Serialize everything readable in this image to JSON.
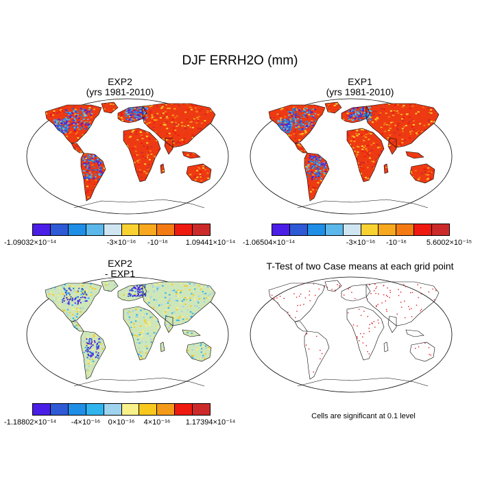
{
  "title": "DJF ERRH2O (mm)",
  "panels": {
    "p1": {
      "line1": "EXP2",
      "line2": "(yrs 1981-2010)"
    },
    "p2": {
      "line1": "EXP1",
      "line2": "(yrs 1981-2010)"
    },
    "p3": {
      "line1": "EXP2",
      "line2": "- EXP1"
    },
    "p4": {
      "line1": "T-Test of two Case means at each grid point",
      "line2": ""
    }
  },
  "colorbars": {
    "cb1": {
      "colors": [
        "#4a1ee6",
        "#2f5ad6",
        "#1f8ee6",
        "#5cb8ea",
        "#cfe6f2",
        "#f9d232",
        "#f7a81e",
        "#f47a14",
        "#ee1a10",
        "#cc2a2a"
      ],
      "labels": [
        "-1.09032×10⁻¹⁴",
        "-3×10⁻¹⁶",
        "-10⁻¹⁶",
        "1.09441×10⁻¹⁴"
      ]
    },
    "cb2": {
      "colors": [
        "#4a1ee6",
        "#2f5ad6",
        "#1f8ee6",
        "#5cb8ea",
        "#cfe6f2",
        "#f9d232",
        "#f7a81e",
        "#f47a14",
        "#ee1a10",
        "#cc2a2a"
      ],
      "labels": [
        "-1.06504×10⁻¹⁴",
        "-3×10⁻¹⁶",
        "-10⁻¹⁶",
        "5.6002×10⁻¹⁵"
      ]
    },
    "cb3": {
      "colors": [
        "#4a1ee6",
        "#2f5ad6",
        "#1f8ee6",
        "#2fb4ee",
        "#9fd3ee",
        "#f8f08a",
        "#f9c81e",
        "#f49a18",
        "#ee1a10",
        "#cc2a2a"
      ],
      "labels": [
        "-1.18802×10⁻¹⁴",
        "-4×10⁻¹⁶",
        "0×10⁻¹⁶",
        "4×10⁻¹⁶",
        "1.17394×10⁻¹⁴"
      ]
    }
  },
  "note": "Cells are significant at 0.1 level"
}
